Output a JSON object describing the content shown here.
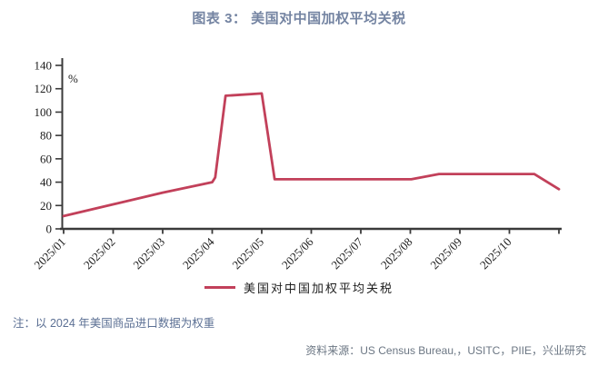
{
  "title": "图表 3： 美国对中国加权平均关税",
  "note": "注：以 2024 年美国商品进口数据为权重",
  "source": "资料来源：US Census Bureau,，USITC，PIIE，兴业研究",
  "colors": {
    "title": "#7484A2",
    "note": "#5C7094",
    "source": "#6B7683",
    "axis": "#3A3A3A",
    "line": "#C2405A"
  },
  "chart_data": {
    "type": "line",
    "title": "图表 3： 美国对中国加权平均关税",
    "unit_label": "%",
    "ylim": [
      0,
      140
    ],
    "y_ticks": [
      0,
      20,
      40,
      60,
      80,
      100,
      120,
      140
    ],
    "x_tick_labels": [
      "2025/01",
      "2025/02",
      "2025/03",
      "2025/04",
      "2025/05",
      "2025/06",
      "2025/07",
      "2025/08",
      "2025/09",
      "2025/10",
      ""
    ],
    "grid": false,
    "legend_position": "bottom",
    "series": [
      {
        "name": "美国对中国加权平均关税",
        "color": "#C2405A",
        "x_unit": "month_index_from_2025_01",
        "points": [
          [
            1.0,
            11
          ],
          [
            2.0,
            21
          ],
          [
            3.0,
            31
          ],
          [
            4.0,
            40
          ],
          [
            4.06,
            44
          ],
          [
            4.27,
            114
          ],
          [
            5.0,
            116
          ],
          [
            5.26,
            42.5
          ],
          [
            8.02,
            42.5
          ],
          [
            8.58,
            47
          ],
          [
            10.5,
            47
          ],
          [
            11.0,
            34
          ]
        ]
      }
    ]
  }
}
